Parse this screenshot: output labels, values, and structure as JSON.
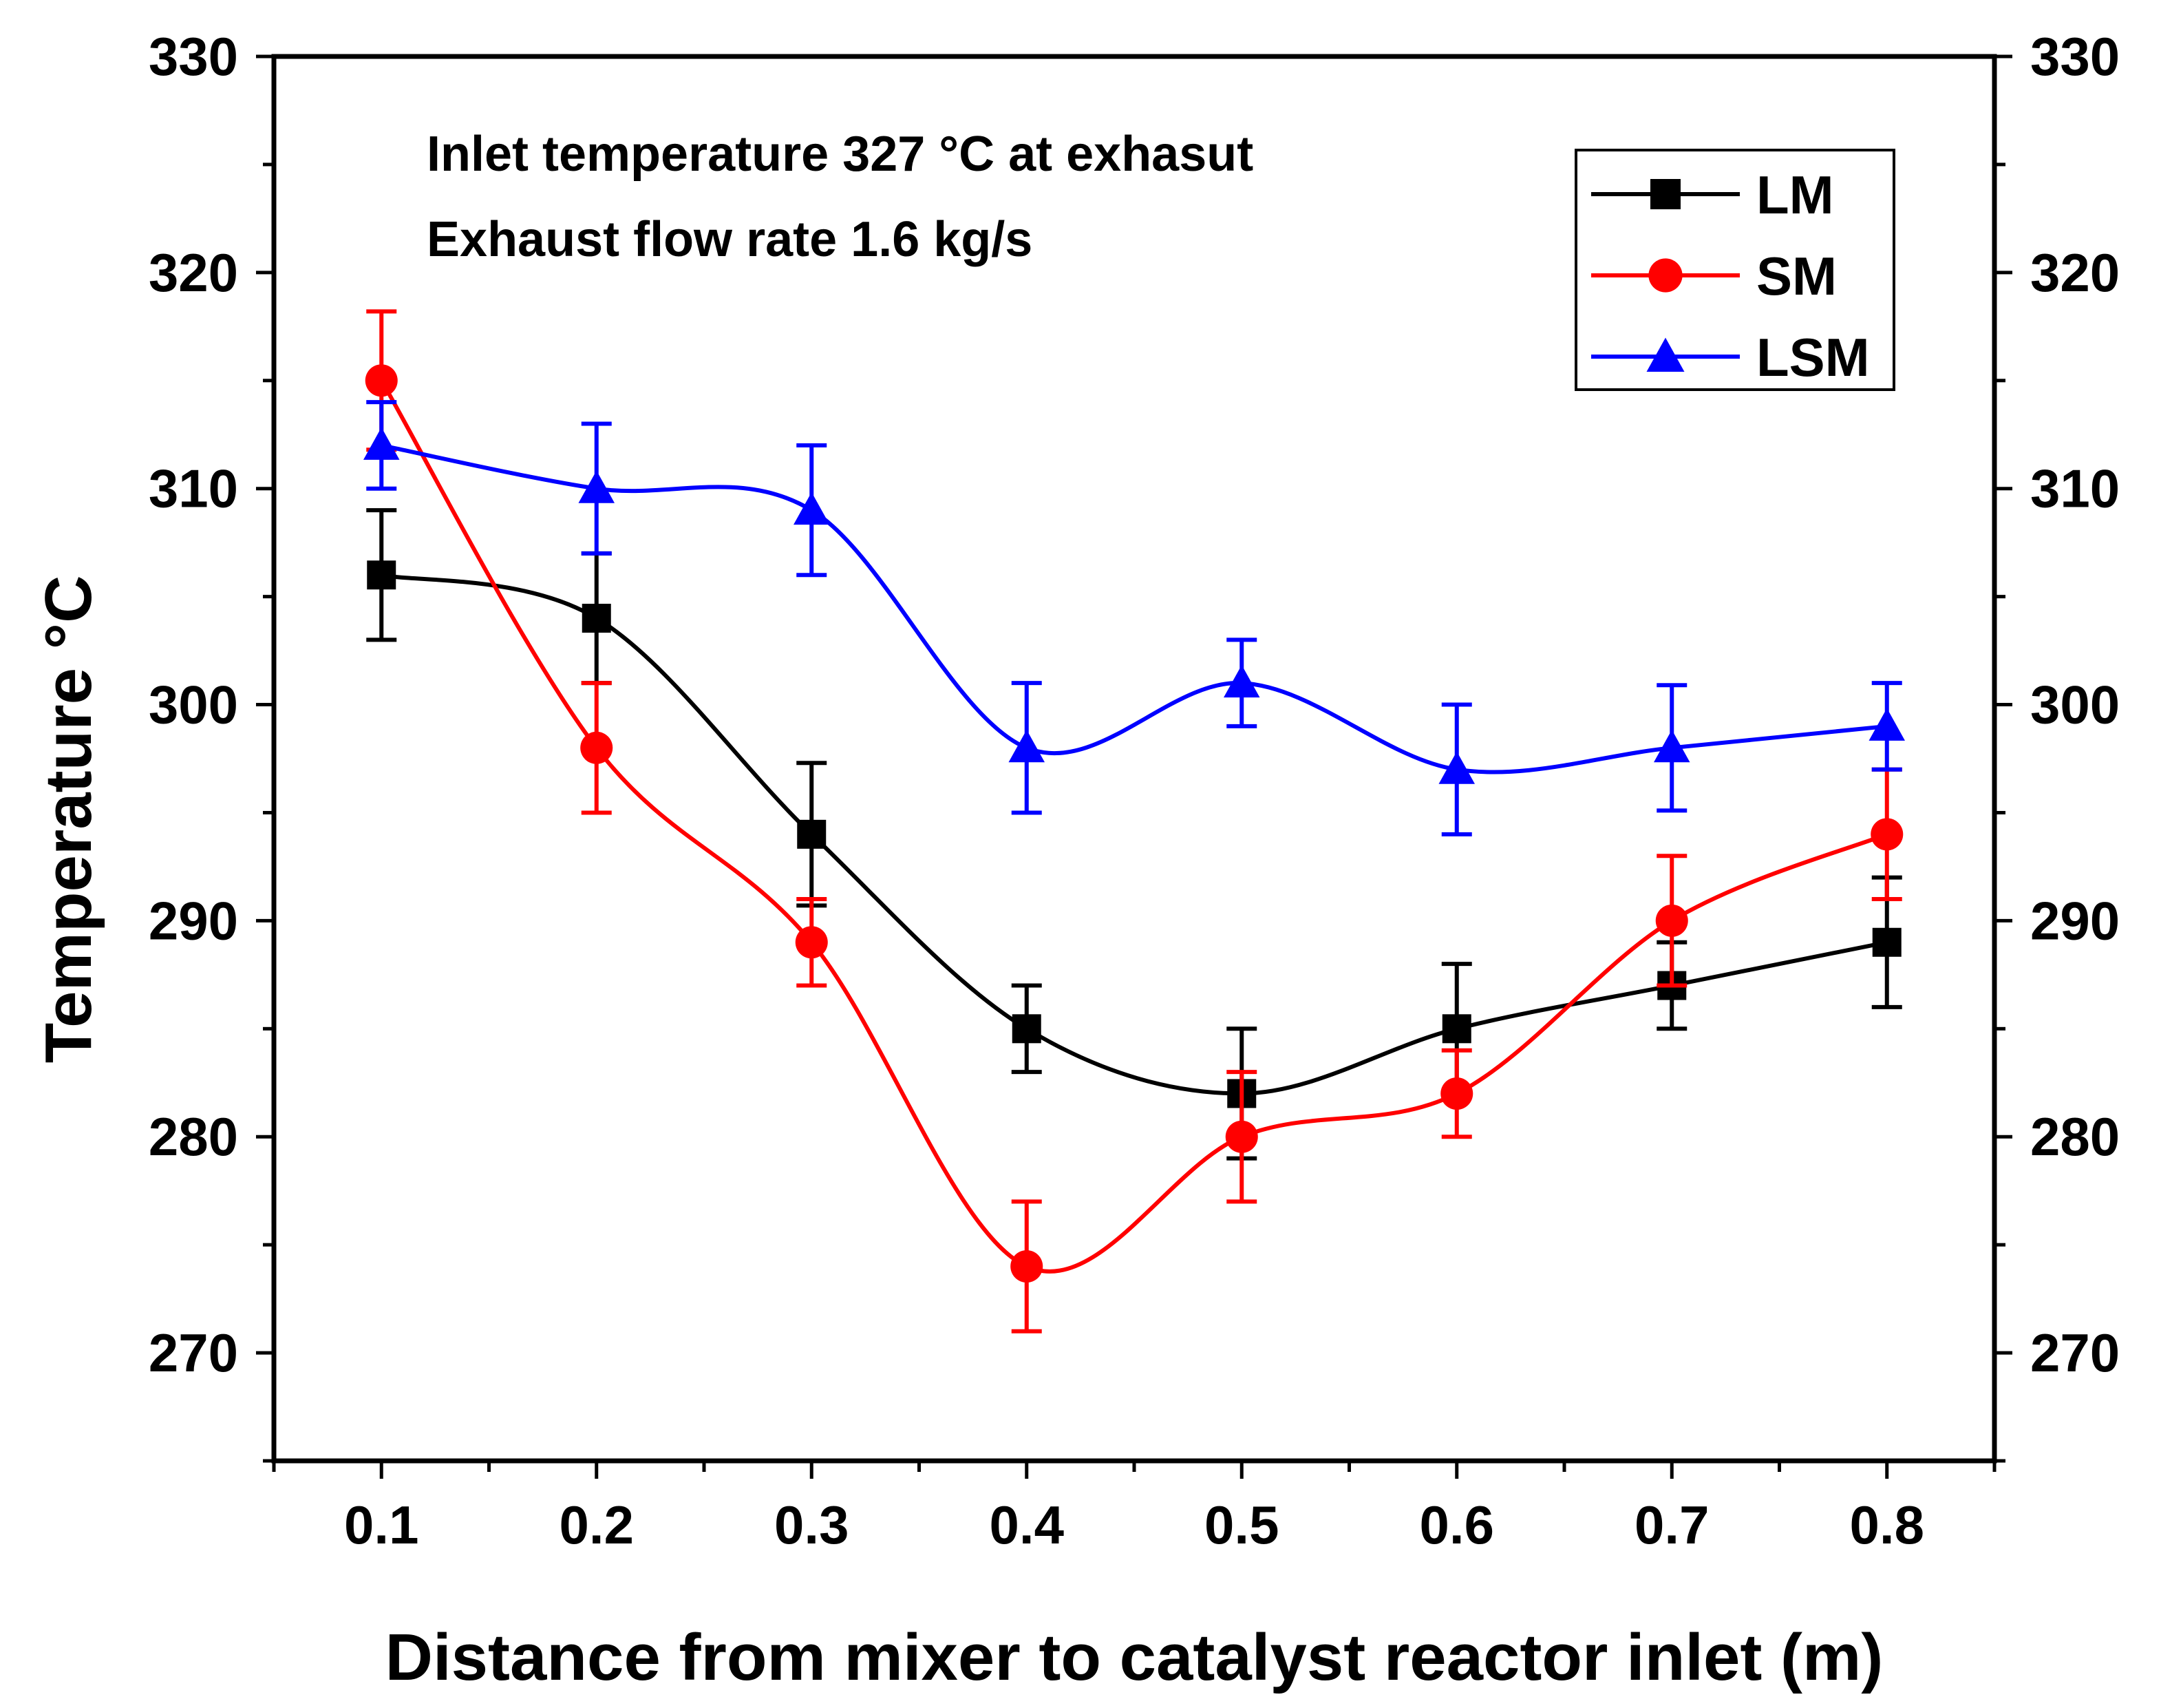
{
  "chart_data": {
    "type": "line",
    "annotations": [
      "Inlet temperature 327 °C at exhasut",
      "Exhaust flow rate 1.6 kg/s"
    ],
    "xlabel": "Distance from mixer to catalyst reactor inlet (m)",
    "ylabel": "Temperature °C",
    "x": [
      0.1,
      0.2,
      0.3,
      0.4,
      0.5,
      0.6,
      0.7,
      0.8
    ],
    "x_tick_labels": [
      "0.1",
      "0.2",
      "0.3",
      "0.4",
      "0.5",
      "0.6",
      "0.7",
      "0.8"
    ],
    "xlim": [
      0.05,
      0.85
    ],
    "ylim": [
      265,
      330
    ],
    "y_ticks": [
      270,
      280,
      290,
      300,
      310,
      320,
      330
    ],
    "y_tick_labels": [
      "270",
      "280",
      "290",
      "300",
      "310",
      "320",
      "330"
    ],
    "right_axis_mirrored": true,
    "legend_position": "top-right",
    "series": [
      {
        "name": "LM",
        "color": "#000000",
        "marker": "square",
        "values": [
          306,
          304,
          294,
          285,
          282,
          285,
          287,
          289
        ],
        "errors": [
          3,
          3,
          3.3,
          2,
          3,
          3,
          2,
          3
        ]
      },
      {
        "name": "SM",
        "color": "#ff0000",
        "marker": "circle",
        "values": [
          315,
          298,
          289,
          274,
          280,
          282,
          290,
          294
        ],
        "errors": [
          3.2,
          3,
          2,
          3,
          3,
          2,
          3,
          3
        ]
      },
      {
        "name": "LSM",
        "color": "#0000ff",
        "marker": "triangle",
        "values": [
          312,
          310,
          309,
          298,
          301,
          297,
          298,
          299
        ],
        "errors": [
          2,
          3,
          3,
          3,
          2,
          3,
          2.9,
          2
        ]
      }
    ]
  }
}
